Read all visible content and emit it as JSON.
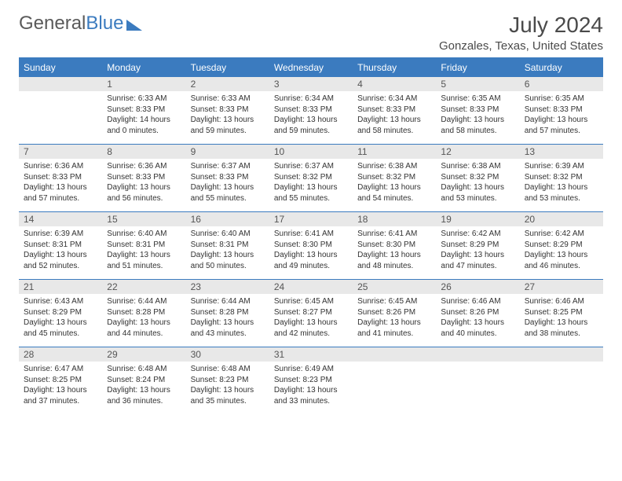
{
  "brand": {
    "part1": "General",
    "part2": "Blue"
  },
  "title": "July 2024",
  "location": "Gonzales, Texas, United States",
  "colors": {
    "accent": "#3b7bbf",
    "header_text": "#ffffff",
    "daynum_bg": "#e8e8e8",
    "text": "#333333",
    "page_bg": "#ffffff"
  },
  "typography": {
    "month_title_fontsize": 28,
    "location_fontsize": 15,
    "dayheader_fontsize": 12,
    "cell_fontsize": 10
  },
  "layout": {
    "columns": 7,
    "rows": 5
  },
  "day_headers": [
    "Sunday",
    "Monday",
    "Tuesday",
    "Wednesday",
    "Thursday",
    "Friday",
    "Saturday"
  ],
  "weeks": [
    [
      null,
      {
        "n": "1",
        "sr": "Sunrise: 6:33 AM",
        "ss": "Sunset: 8:33 PM",
        "dl": "Daylight: 14 hours and 0 minutes."
      },
      {
        "n": "2",
        "sr": "Sunrise: 6:33 AM",
        "ss": "Sunset: 8:33 PM",
        "dl": "Daylight: 13 hours and 59 minutes."
      },
      {
        "n": "3",
        "sr": "Sunrise: 6:34 AM",
        "ss": "Sunset: 8:33 PM",
        "dl": "Daylight: 13 hours and 59 minutes."
      },
      {
        "n": "4",
        "sr": "Sunrise: 6:34 AM",
        "ss": "Sunset: 8:33 PM",
        "dl": "Daylight: 13 hours and 58 minutes."
      },
      {
        "n": "5",
        "sr": "Sunrise: 6:35 AM",
        "ss": "Sunset: 8:33 PM",
        "dl": "Daylight: 13 hours and 58 minutes."
      },
      {
        "n": "6",
        "sr": "Sunrise: 6:35 AM",
        "ss": "Sunset: 8:33 PM",
        "dl": "Daylight: 13 hours and 57 minutes."
      }
    ],
    [
      {
        "n": "7",
        "sr": "Sunrise: 6:36 AM",
        "ss": "Sunset: 8:33 PM",
        "dl": "Daylight: 13 hours and 57 minutes."
      },
      {
        "n": "8",
        "sr": "Sunrise: 6:36 AM",
        "ss": "Sunset: 8:33 PM",
        "dl": "Daylight: 13 hours and 56 minutes."
      },
      {
        "n": "9",
        "sr": "Sunrise: 6:37 AM",
        "ss": "Sunset: 8:33 PM",
        "dl": "Daylight: 13 hours and 55 minutes."
      },
      {
        "n": "10",
        "sr": "Sunrise: 6:37 AM",
        "ss": "Sunset: 8:32 PM",
        "dl": "Daylight: 13 hours and 55 minutes."
      },
      {
        "n": "11",
        "sr": "Sunrise: 6:38 AM",
        "ss": "Sunset: 8:32 PM",
        "dl": "Daylight: 13 hours and 54 minutes."
      },
      {
        "n": "12",
        "sr": "Sunrise: 6:38 AM",
        "ss": "Sunset: 8:32 PM",
        "dl": "Daylight: 13 hours and 53 minutes."
      },
      {
        "n": "13",
        "sr": "Sunrise: 6:39 AM",
        "ss": "Sunset: 8:32 PM",
        "dl": "Daylight: 13 hours and 53 minutes."
      }
    ],
    [
      {
        "n": "14",
        "sr": "Sunrise: 6:39 AM",
        "ss": "Sunset: 8:31 PM",
        "dl": "Daylight: 13 hours and 52 minutes."
      },
      {
        "n": "15",
        "sr": "Sunrise: 6:40 AM",
        "ss": "Sunset: 8:31 PM",
        "dl": "Daylight: 13 hours and 51 minutes."
      },
      {
        "n": "16",
        "sr": "Sunrise: 6:40 AM",
        "ss": "Sunset: 8:31 PM",
        "dl": "Daylight: 13 hours and 50 minutes."
      },
      {
        "n": "17",
        "sr": "Sunrise: 6:41 AM",
        "ss": "Sunset: 8:30 PM",
        "dl": "Daylight: 13 hours and 49 minutes."
      },
      {
        "n": "18",
        "sr": "Sunrise: 6:41 AM",
        "ss": "Sunset: 8:30 PM",
        "dl": "Daylight: 13 hours and 48 minutes."
      },
      {
        "n": "19",
        "sr": "Sunrise: 6:42 AM",
        "ss": "Sunset: 8:29 PM",
        "dl": "Daylight: 13 hours and 47 minutes."
      },
      {
        "n": "20",
        "sr": "Sunrise: 6:42 AM",
        "ss": "Sunset: 8:29 PM",
        "dl": "Daylight: 13 hours and 46 minutes."
      }
    ],
    [
      {
        "n": "21",
        "sr": "Sunrise: 6:43 AM",
        "ss": "Sunset: 8:29 PM",
        "dl": "Daylight: 13 hours and 45 minutes."
      },
      {
        "n": "22",
        "sr": "Sunrise: 6:44 AM",
        "ss": "Sunset: 8:28 PM",
        "dl": "Daylight: 13 hours and 44 minutes."
      },
      {
        "n": "23",
        "sr": "Sunrise: 6:44 AM",
        "ss": "Sunset: 8:28 PM",
        "dl": "Daylight: 13 hours and 43 minutes."
      },
      {
        "n": "24",
        "sr": "Sunrise: 6:45 AM",
        "ss": "Sunset: 8:27 PM",
        "dl": "Daylight: 13 hours and 42 minutes."
      },
      {
        "n": "25",
        "sr": "Sunrise: 6:45 AM",
        "ss": "Sunset: 8:26 PM",
        "dl": "Daylight: 13 hours and 41 minutes."
      },
      {
        "n": "26",
        "sr": "Sunrise: 6:46 AM",
        "ss": "Sunset: 8:26 PM",
        "dl": "Daylight: 13 hours and 40 minutes."
      },
      {
        "n": "27",
        "sr": "Sunrise: 6:46 AM",
        "ss": "Sunset: 8:25 PM",
        "dl": "Daylight: 13 hours and 38 minutes."
      }
    ],
    [
      {
        "n": "28",
        "sr": "Sunrise: 6:47 AM",
        "ss": "Sunset: 8:25 PM",
        "dl": "Daylight: 13 hours and 37 minutes."
      },
      {
        "n": "29",
        "sr": "Sunrise: 6:48 AM",
        "ss": "Sunset: 8:24 PM",
        "dl": "Daylight: 13 hours and 36 minutes."
      },
      {
        "n": "30",
        "sr": "Sunrise: 6:48 AM",
        "ss": "Sunset: 8:23 PM",
        "dl": "Daylight: 13 hours and 35 minutes."
      },
      {
        "n": "31",
        "sr": "Sunrise: 6:49 AM",
        "ss": "Sunset: 8:23 PM",
        "dl": "Daylight: 13 hours and 33 minutes."
      },
      null,
      null,
      null
    ]
  ]
}
